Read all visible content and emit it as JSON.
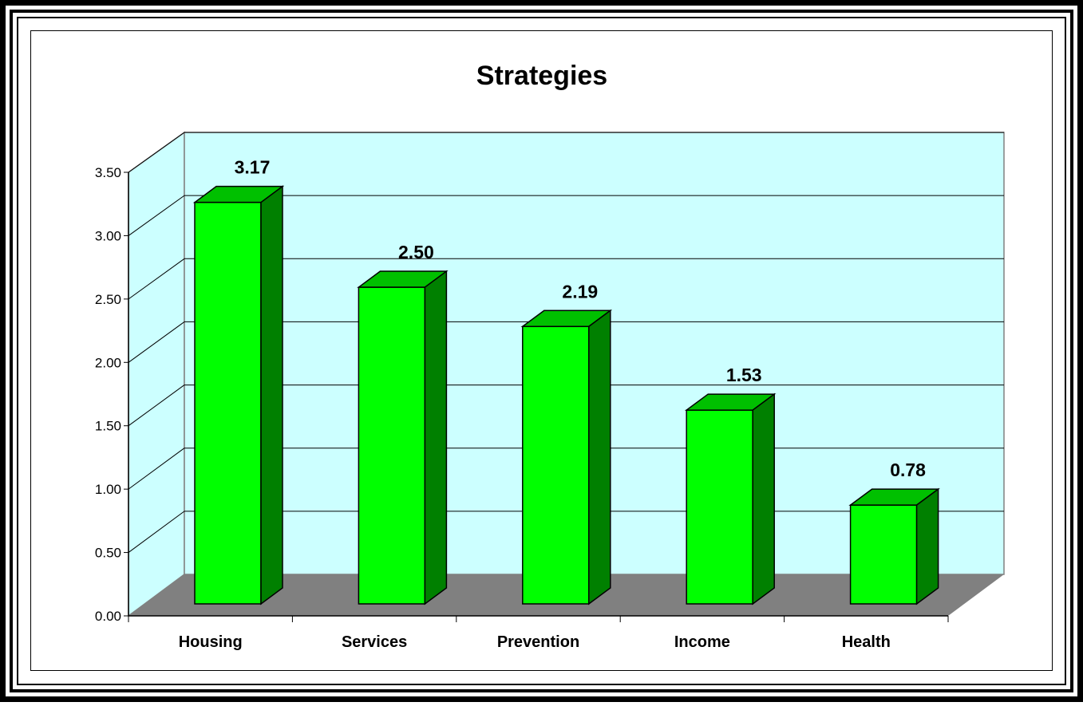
{
  "chart_data": {
    "type": "bar",
    "title": "Strategies",
    "xlabel": "",
    "ylabel": "",
    "categories": [
      "Housing",
      "Services",
      "Prevention",
      "Income",
      "Health"
    ],
    "values": [
      3.17,
      2.5,
      2.19,
      1.53,
      0.78
    ],
    "value_labels": [
      "3.17",
      "2.50",
      "2.19",
      "1.53",
      "0.78"
    ],
    "y_ticks": [
      "0.00",
      "0.50",
      "1.00",
      "1.50",
      "2.00",
      "2.50",
      "3.00",
      "3.50"
    ],
    "ylim": [
      0,
      3.5
    ],
    "grid": true,
    "three_d": true,
    "legend": "none",
    "colors": {
      "bar_front": "#00ff00",
      "bar_top": "#00c000",
      "bar_side": "#008000",
      "wall": "#ccffff",
      "floor": "#808080"
    }
  }
}
